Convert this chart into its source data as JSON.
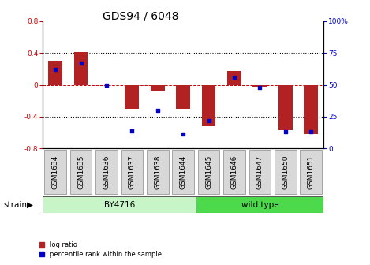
{
  "title": "GDS94 / 6048",
  "samples": [
    "GSM1634",
    "GSM1635",
    "GSM1636",
    "GSM1637",
    "GSM1638",
    "GSM1644",
    "GSM1645",
    "GSM1646",
    "GSM1647",
    "GSM1650",
    "GSM1651"
  ],
  "log_ratio": [
    0.3,
    0.41,
    0.0,
    -0.3,
    -0.08,
    -0.3,
    -0.52,
    0.17,
    -0.02,
    -0.57,
    -0.62
  ],
  "percentile": [
    62,
    67,
    50,
    14,
    30,
    11,
    22,
    56,
    48,
    13,
    13
  ],
  "bar_color": "#b22222",
  "dot_color": "#0000cc",
  "bg_color": "#ffffff",
  "plot_bg": "#ffffff",
  "ylim_left": [
    -0.8,
    0.8
  ],
  "ylim_right": [
    0,
    100
  ],
  "yticks_left": [
    -0.8,
    -0.4,
    0.0,
    0.4,
    0.8
  ],
  "yticks_right": [
    0,
    25,
    50,
    75,
    100
  ],
  "ytick_labels_left": [
    "-0.8",
    "-0.4",
    "0",
    "0.4",
    "0.8"
  ],
  "ytick_labels_right": [
    "0",
    "25",
    "50",
    "75",
    "100%"
  ],
  "g1_label": "BY4716",
  "g1_n": 6,
  "g2_label": "wild type",
  "g2_n": 5,
  "g1_color": "#c8f5c8",
  "g2_color": "#4cd94c",
  "strain_label": "strain",
  "legend_log_ratio": "log ratio",
  "legend_percentile": "percentile rank within the sample",
  "title_fontsize": 10,
  "tick_fontsize": 6.5,
  "label_fontsize": 7.5,
  "bar_width": 0.55,
  "hline_color": "#cc0000",
  "grid_color": "#000000",
  "left_tick_color": "#cc0000",
  "right_tick_color": "#0000cc",
  "box_facecolor": "#d8d8d8",
  "box_edgecolor": "#888888"
}
